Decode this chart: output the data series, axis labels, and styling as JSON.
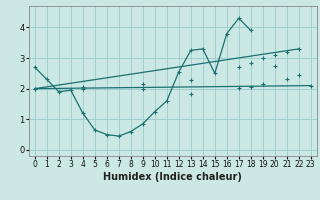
{
  "xlabel": "Humidex (Indice chaleur)",
  "bg_color": "#cce8e4",
  "grid_color": "#99cccc",
  "line_color": "#1a7070",
  "xlim": [
    -0.5,
    23.5
  ],
  "ylim": [
    -0.2,
    4.7
  ],
  "yticks": [
    0,
    1,
    2,
    3,
    4
  ],
  "xticks": [
    0,
    1,
    2,
    3,
    4,
    5,
    6,
    7,
    8,
    9,
    10,
    11,
    12,
    13,
    14,
    15,
    16,
    17,
    18,
    19,
    20,
    21,
    22,
    23
  ],
  "line1_x": [
    0,
    1,
    2,
    3,
    4,
    5,
    6,
    7,
    8,
    9,
    10,
    11,
    12,
    13,
    14,
    15,
    16,
    17,
    18
  ],
  "line1_y": [
    2.7,
    2.3,
    1.9,
    1.95,
    1.2,
    0.65,
    0.5,
    0.45,
    0.6,
    0.85,
    1.25,
    1.6,
    2.55,
    3.25,
    3.3,
    2.5,
    3.8,
    4.3,
    3.9
  ],
  "line2_x": [
    0,
    22
  ],
  "line2_y": [
    2.0,
    3.3
  ],
  "line3_x": [
    0,
    23
  ],
  "line3_y": [
    2.0,
    2.1
  ],
  "line2_markers_x": [
    0,
    4,
    9,
    13,
    17,
    18,
    19,
    20,
    21,
    22
  ],
  "line2_markers_y": [
    2.0,
    2.07,
    2.16,
    2.27,
    2.72,
    2.85,
    3.0,
    3.1,
    3.2,
    3.3
  ],
  "line3_markers_x": [
    0,
    4,
    9,
    13,
    17,
    18,
    19,
    20,
    21,
    22,
    23
  ],
  "line3_markers_y": [
    2.0,
    2.0,
    2.0,
    1.82,
    2.02,
    2.07,
    2.15,
    2.75,
    2.3,
    2.45,
    2.1
  ]
}
